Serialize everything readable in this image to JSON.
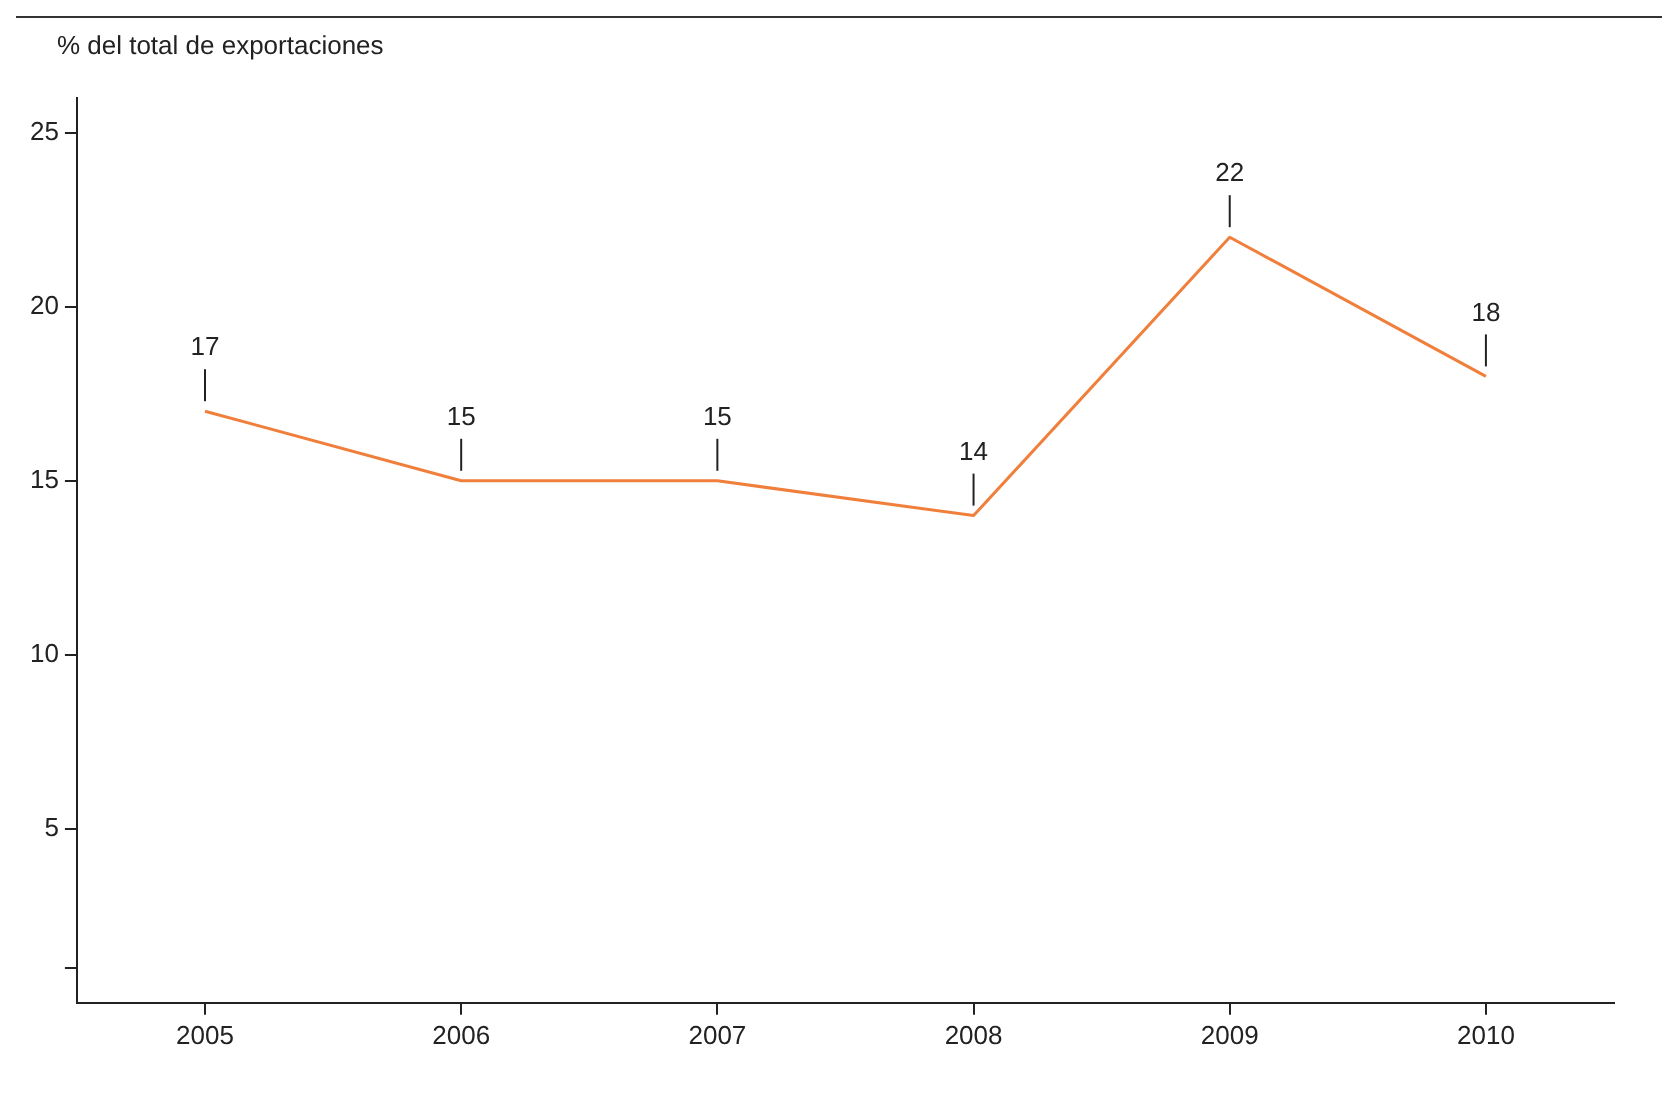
{
  "chart_data": {
    "type": "line",
    "ylabel": "% del total de exportaciones",
    "categories": [
      "2005",
      "2006",
      "2007",
      "2008",
      "2009",
      "2010"
    ],
    "series": [
      {
        "color": "#f07f3c",
        "values": [
          17,
          15,
          15,
          14,
          22,
          18
        ]
      }
    ],
    "ylim": [
      0,
      26
    ],
    "yticks": [
      {
        "value": 1,
        "label": null
      },
      5,
      10,
      15,
      20,
      25
    ],
    "grid": false,
    "legend": false,
    "marker": "none",
    "line_style": "solid",
    "data_labels": true
  }
}
